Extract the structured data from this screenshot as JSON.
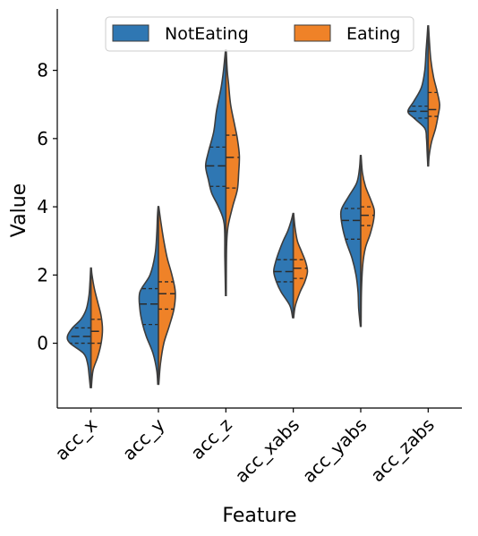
{
  "chart_data": {
    "type": "violin",
    "xlabel": "Feature",
    "ylabel": "Value",
    "categories": [
      "acc_x",
      "acc_y",
      "acc_z",
      "acc_xabs",
      "acc_yabs",
      "acc_zabs"
    ],
    "ylim": [
      -1.9,
      9.8
    ],
    "yticks": [
      0,
      2,
      4,
      6,
      8
    ],
    "yticklabels": [
      "0",
      "2",
      "4",
      "6",
      "8"
    ],
    "grid": false,
    "legend_position": "top-center",
    "split": true,
    "inner": "quartile",
    "series": [
      {
        "name": "NotEating",
        "color": "#2f77b3",
        "violins": [
          {
            "min": -1.3,
            "max": 2.2,
            "q1": 0.0,
            "median": 0.2,
            "q3": 0.45,
            "profile": [
              [
                -1.3,
                0.02
              ],
              [
                -1.0,
                0.05
              ],
              [
                -0.6,
                0.1
              ],
              [
                -0.3,
                0.22
              ],
              [
                0.0,
                0.62
              ],
              [
                0.2,
                0.7
              ],
              [
                0.45,
                0.55
              ],
              [
                0.7,
                0.3
              ],
              [
                1.0,
                0.14
              ],
              [
                1.4,
                0.06
              ],
              [
                1.8,
                0.03
              ],
              [
                2.2,
                0.01
              ]
            ]
          },
          {
            "min": -1.2,
            "max": 4.0,
            "q1": 0.55,
            "median": 1.15,
            "q3": 1.6,
            "profile": [
              [
                -1.2,
                0.02
              ],
              [
                -0.8,
                0.05
              ],
              [
                -0.3,
                0.16
              ],
              [
                0.2,
                0.36
              ],
              [
                0.6,
                0.48
              ],
              [
                1.0,
                0.55
              ],
              [
                1.5,
                0.55
              ],
              [
                2.0,
                0.25
              ],
              [
                2.6,
                0.1
              ],
              [
                3.2,
                0.05
              ],
              [
                3.7,
                0.03
              ],
              [
                4.0,
                0.01
              ]
            ]
          },
          {
            "min": 1.4,
            "max": 8.6,
            "q1": 4.6,
            "median": 5.2,
            "q3": 5.75,
            "profile": [
              [
                1.4,
                0.01
              ],
              [
                2.5,
                0.03
              ],
              [
                3.5,
                0.05
              ],
              [
                4.0,
                0.22
              ],
              [
                4.4,
                0.42
              ],
              [
                4.8,
                0.52
              ],
              [
                5.2,
                0.6
              ],
              [
                5.6,
                0.52
              ],
              [
                6.2,
                0.36
              ],
              [
                6.8,
                0.28
              ],
              [
                7.5,
                0.14
              ],
              [
                8.0,
                0.07
              ],
              [
                8.6,
                0.01
              ]
            ]
          },
          {
            "min": 0.75,
            "max": 3.8,
            "q1": 1.8,
            "median": 2.1,
            "q3": 2.45,
            "profile": [
              [
                0.75,
                0.02
              ],
              [
                1.1,
                0.1
              ],
              [
                1.5,
                0.36
              ],
              [
                1.8,
                0.5
              ],
              [
                2.1,
                0.58
              ],
              [
                2.4,
                0.52
              ],
              [
                2.7,
                0.42
              ],
              [
                3.0,
                0.3
              ],
              [
                3.3,
                0.16
              ],
              [
                3.6,
                0.06
              ],
              [
                3.8,
                0.01
              ]
            ]
          },
          {
            "min": 0.5,
            "max": 5.5,
            "q1": 3.05,
            "median": 3.6,
            "q3": 3.95,
            "profile": [
              [
                0.5,
                0.01
              ],
              [
                1.0,
                0.06
              ],
              [
                1.5,
                0.08
              ],
              [
                2.0,
                0.14
              ],
              [
                2.5,
                0.26
              ],
              [
                3.0,
                0.44
              ],
              [
                3.5,
                0.56
              ],
              [
                3.9,
                0.58
              ],
              [
                4.3,
                0.36
              ],
              [
                4.7,
                0.12
              ],
              [
                5.1,
                0.04
              ],
              [
                5.5,
                0.01
              ]
            ]
          },
          {
            "min": 5.2,
            "max": 9.3,
            "q1": 6.6,
            "median": 6.8,
            "q3": 6.95,
            "profile": [
              [
                5.2,
                0.01
              ],
              [
                5.6,
                0.03
              ],
              [
                6.0,
                0.05
              ],
              [
                6.3,
                0.1
              ],
              [
                6.6,
                0.42
              ],
              [
                6.8,
                0.6
              ],
              [
                7.1,
                0.42
              ],
              [
                7.5,
                0.2
              ],
              [
                8.0,
                0.1
              ],
              [
                8.6,
                0.06
              ],
              [
                9.0,
                0.03
              ],
              [
                9.3,
                0.01
              ]
            ]
          }
        ]
      },
      {
        "name": "Eating",
        "color": "#ef8228",
        "violins": [
          {
            "min": -1.3,
            "max": 2.2,
            "q1": 0.0,
            "median": 0.35,
            "q3": 0.7,
            "profile": [
              [
                -1.3,
                0.01
              ],
              [
                -0.8,
                0.06
              ],
              [
                -0.4,
                0.2
              ],
              [
                0.0,
                0.3
              ],
              [
                0.4,
                0.34
              ],
              [
                0.8,
                0.3
              ],
              [
                1.2,
                0.2
              ],
              [
                1.6,
                0.1
              ],
              [
                2.0,
                0.03
              ],
              [
                2.2,
                0.01
              ]
            ]
          },
          {
            "min": -1.2,
            "max": 4.0,
            "q1": 1.0,
            "median": 1.45,
            "q3": 1.8,
            "profile": [
              [
                -1.2,
                0.01
              ],
              [
                -0.6,
                0.06
              ],
              [
                0.0,
                0.16
              ],
              [
                0.5,
                0.32
              ],
              [
                1.0,
                0.46
              ],
              [
                1.5,
                0.5
              ],
              [
                2.0,
                0.4
              ],
              [
                2.5,
                0.26
              ],
              [
                3.0,
                0.16
              ],
              [
                3.5,
                0.08
              ],
              [
                4.0,
                0.01
              ]
            ]
          },
          {
            "min": 1.4,
            "max": 8.6,
            "q1": 4.55,
            "median": 5.45,
            "q3": 6.1,
            "profile": [
              [
                1.4,
                0.01
              ],
              [
                2.8,
                0.02
              ],
              [
                3.4,
                0.06
              ],
              [
                4.0,
                0.2
              ],
              [
                4.5,
                0.34
              ],
              [
                5.0,
                0.38
              ],
              [
                5.5,
                0.4
              ],
              [
                6.0,
                0.34
              ],
              [
                6.4,
                0.26
              ],
              [
                7.0,
                0.14
              ],
              [
                7.6,
                0.08
              ],
              [
                8.0,
                0.04
              ],
              [
                8.6,
                0.01
              ]
            ]
          },
          {
            "min": 0.75,
            "max": 3.8,
            "q1": 1.9,
            "median": 2.2,
            "q3": 2.45,
            "profile": [
              [
                0.75,
                0.01
              ],
              [
                1.1,
                0.06
              ],
              [
                1.5,
                0.2
              ],
              [
                1.8,
                0.34
              ],
              [
                2.1,
                0.42
              ],
              [
                2.4,
                0.36
              ],
              [
                2.7,
                0.24
              ],
              [
                3.0,
                0.12
              ],
              [
                3.4,
                0.05
              ],
              [
                3.8,
                0.01
              ]
            ]
          },
          {
            "min": 0.5,
            "max": 5.5,
            "q1": 3.45,
            "median": 3.75,
            "q3": 4.0,
            "profile": [
              [
                0.5,
                0.01
              ],
              [
                1.5,
                0.02
              ],
              [
                2.3,
                0.06
              ],
              [
                2.8,
                0.14
              ],
              [
                3.2,
                0.28
              ],
              [
                3.6,
                0.38
              ],
              [
                3.9,
                0.4
              ],
              [
                4.2,
                0.3
              ],
              [
                4.6,
                0.14
              ],
              [
                5.0,
                0.05
              ],
              [
                5.5,
                0.01
              ]
            ]
          },
          {
            "min": 5.2,
            "max": 9.3,
            "q1": 6.65,
            "median": 6.85,
            "q3": 7.35,
            "profile": [
              [
                5.2,
                0.01
              ],
              [
                5.5,
                0.03
              ],
              [
                5.9,
                0.1
              ],
              [
                6.3,
                0.22
              ],
              [
                6.7,
                0.3
              ],
              [
                7.0,
                0.34
              ],
              [
                7.4,
                0.26
              ],
              [
                7.8,
                0.16
              ],
              [
                8.3,
                0.08
              ],
              [
                8.8,
                0.04
              ],
              [
                9.3,
                0.01
              ]
            ]
          }
        ]
      }
    ]
  }
}
